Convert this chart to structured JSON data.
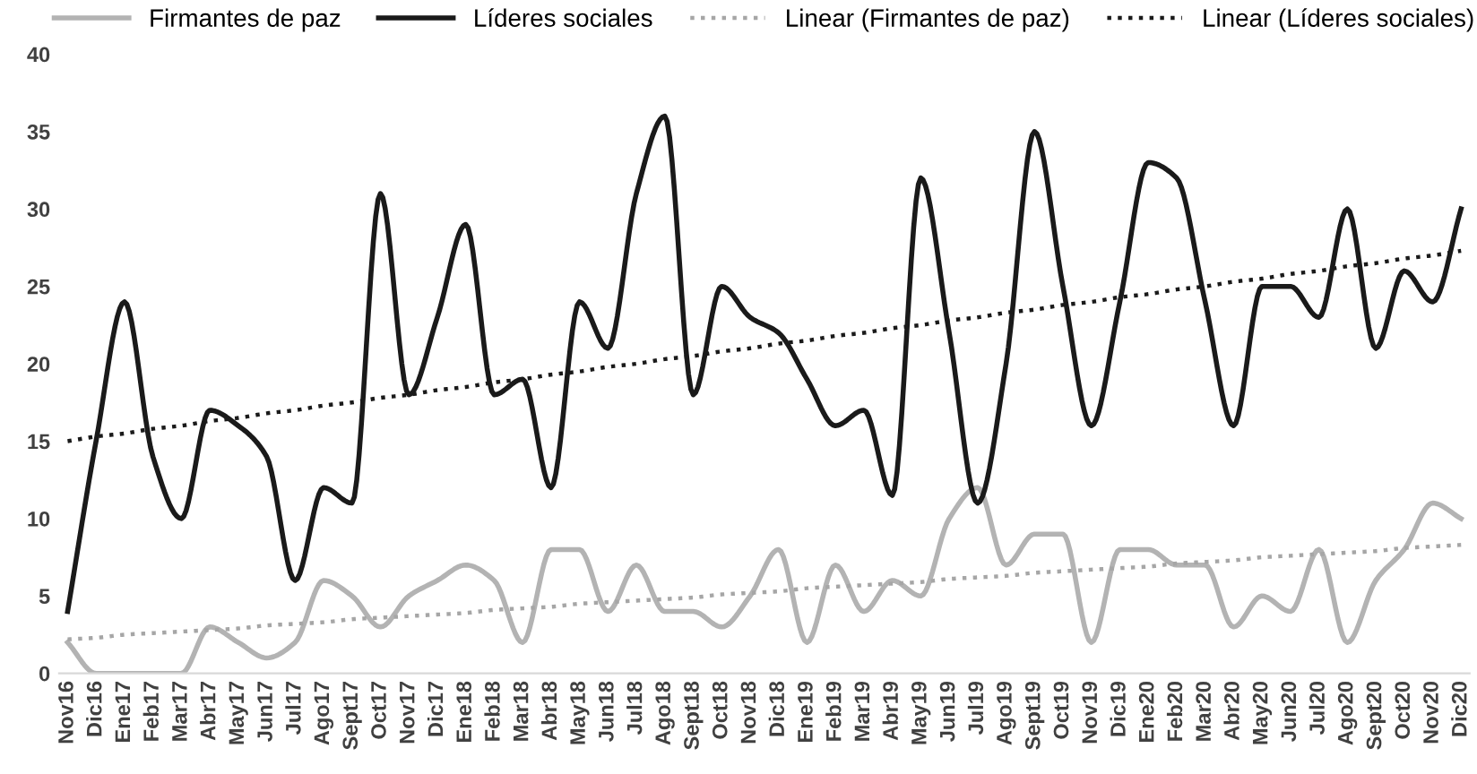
{
  "chart_data": {
    "type": "line",
    "categories": [
      "Nov16",
      "Dic16",
      "Ene17",
      "Feb17",
      "Mar17",
      "Abr17",
      "May17",
      "Jun17",
      "Jul17",
      "Ago17",
      "Sept17",
      "Oct17",
      "Nov17",
      "Dic17",
      "Ene18",
      "Feb18",
      "Mar18",
      "Abr18",
      "May18",
      "Jun18",
      "Jul18",
      "Ago18",
      "Sept18",
      "Oct18",
      "Nov18",
      "Dic18",
      "Ene19",
      "Feb19",
      "Mar19",
      "Abr19",
      "May19",
      "Jun19",
      "Jul19",
      "Ago19",
      "Sept19",
      "Oct19",
      "Nov19",
      "Dic19",
      "Ene20",
      "Feb20",
      "Mar20",
      "Abr20",
      "May20",
      "Jun20",
      "Jul20",
      "Ago20",
      "Sept20",
      "Oct20",
      "Nov20",
      "Dic20"
    ],
    "series": [
      {
        "name": "Firmantes de paz",
        "color": "#b3b3b3",
        "line_style": "solid",
        "values": [
          2,
          0,
          0,
          0,
          0,
          3,
          2,
          1,
          2,
          6,
          5,
          3,
          5,
          6,
          7,
          6,
          2,
          8,
          8,
          4,
          7,
          4,
          4,
          3,
          5,
          8,
          2,
          7,
          4,
          6,
          5,
          10,
          12,
          7,
          9,
          9,
          2,
          8,
          8,
          7,
          7,
          3,
          5,
          4,
          8,
          2,
          6,
          8,
          11,
          10
        ]
      },
      {
        "name": "Líderes sociales",
        "color": "#1a1a1a",
        "line_style": "solid",
        "values": [
          4,
          15,
          24,
          14,
          10,
          17,
          16,
          14,
          6,
          12,
          11,
          31,
          18,
          23,
          29,
          18,
          19,
          12,
          24,
          21,
          31,
          36,
          18,
          25,
          23,
          22,
          19,
          16,
          17,
          11.5,
          32,
          22,
          11,
          20,
          35,
          25,
          16,
          24,
          33,
          32,
          24,
          16,
          25,
          25,
          23,
          30,
          21,
          26,
          24,
          30
        ]
      },
      {
        "name": "Linear (Firmantes de paz)",
        "color": "#a6a6a6",
        "line_style": "dotted",
        "values": [
          2.2,
          2.3,
          2.5,
          2.6,
          2.7,
          2.8,
          2.9,
          3.1,
          3.2,
          3.3,
          3.5,
          3.6,
          3.7,
          3.8,
          3.9,
          4.1,
          4.2,
          4.3,
          4.5,
          4.6,
          4.7,
          4.8,
          4.9,
          5.1,
          5.2,
          5.3,
          5.5,
          5.6,
          5.7,
          5.8,
          5.9,
          6.1,
          6.2,
          6.3,
          6.5,
          6.6,
          6.7,
          6.8,
          6.9,
          7.1,
          7.2,
          7.3,
          7.5,
          7.6,
          7.7,
          7.8,
          7.9,
          8.1,
          8.2,
          8.3
        ]
      },
      {
        "name": "Linear (Líderes sociales)",
        "color": "#1a1a1a",
        "line_style": "dotted",
        "values": [
          15.0,
          15.3,
          15.5,
          15.8,
          16.0,
          16.3,
          16.5,
          16.8,
          17.0,
          17.3,
          17.5,
          17.8,
          18.0,
          18.3,
          18.5,
          18.8,
          19.0,
          19.3,
          19.5,
          19.8,
          20.0,
          20.3,
          20.5,
          20.8,
          21.0,
          21.3,
          21.5,
          21.8,
          22.0,
          22.3,
          22.5,
          22.8,
          23.0,
          23.3,
          23.5,
          23.8,
          24.0,
          24.3,
          24.5,
          24.8,
          25.0,
          25.3,
          25.5,
          25.8,
          26.0,
          26.3,
          26.5,
          26.8,
          27.0,
          27.3
        ]
      }
    ],
    "ylim": [
      0,
      40
    ],
    "yticks": [
      0,
      5,
      10,
      15,
      20,
      25,
      30,
      35,
      40
    ],
    "grid": false,
    "legend": "top",
    "marker": "none"
  }
}
